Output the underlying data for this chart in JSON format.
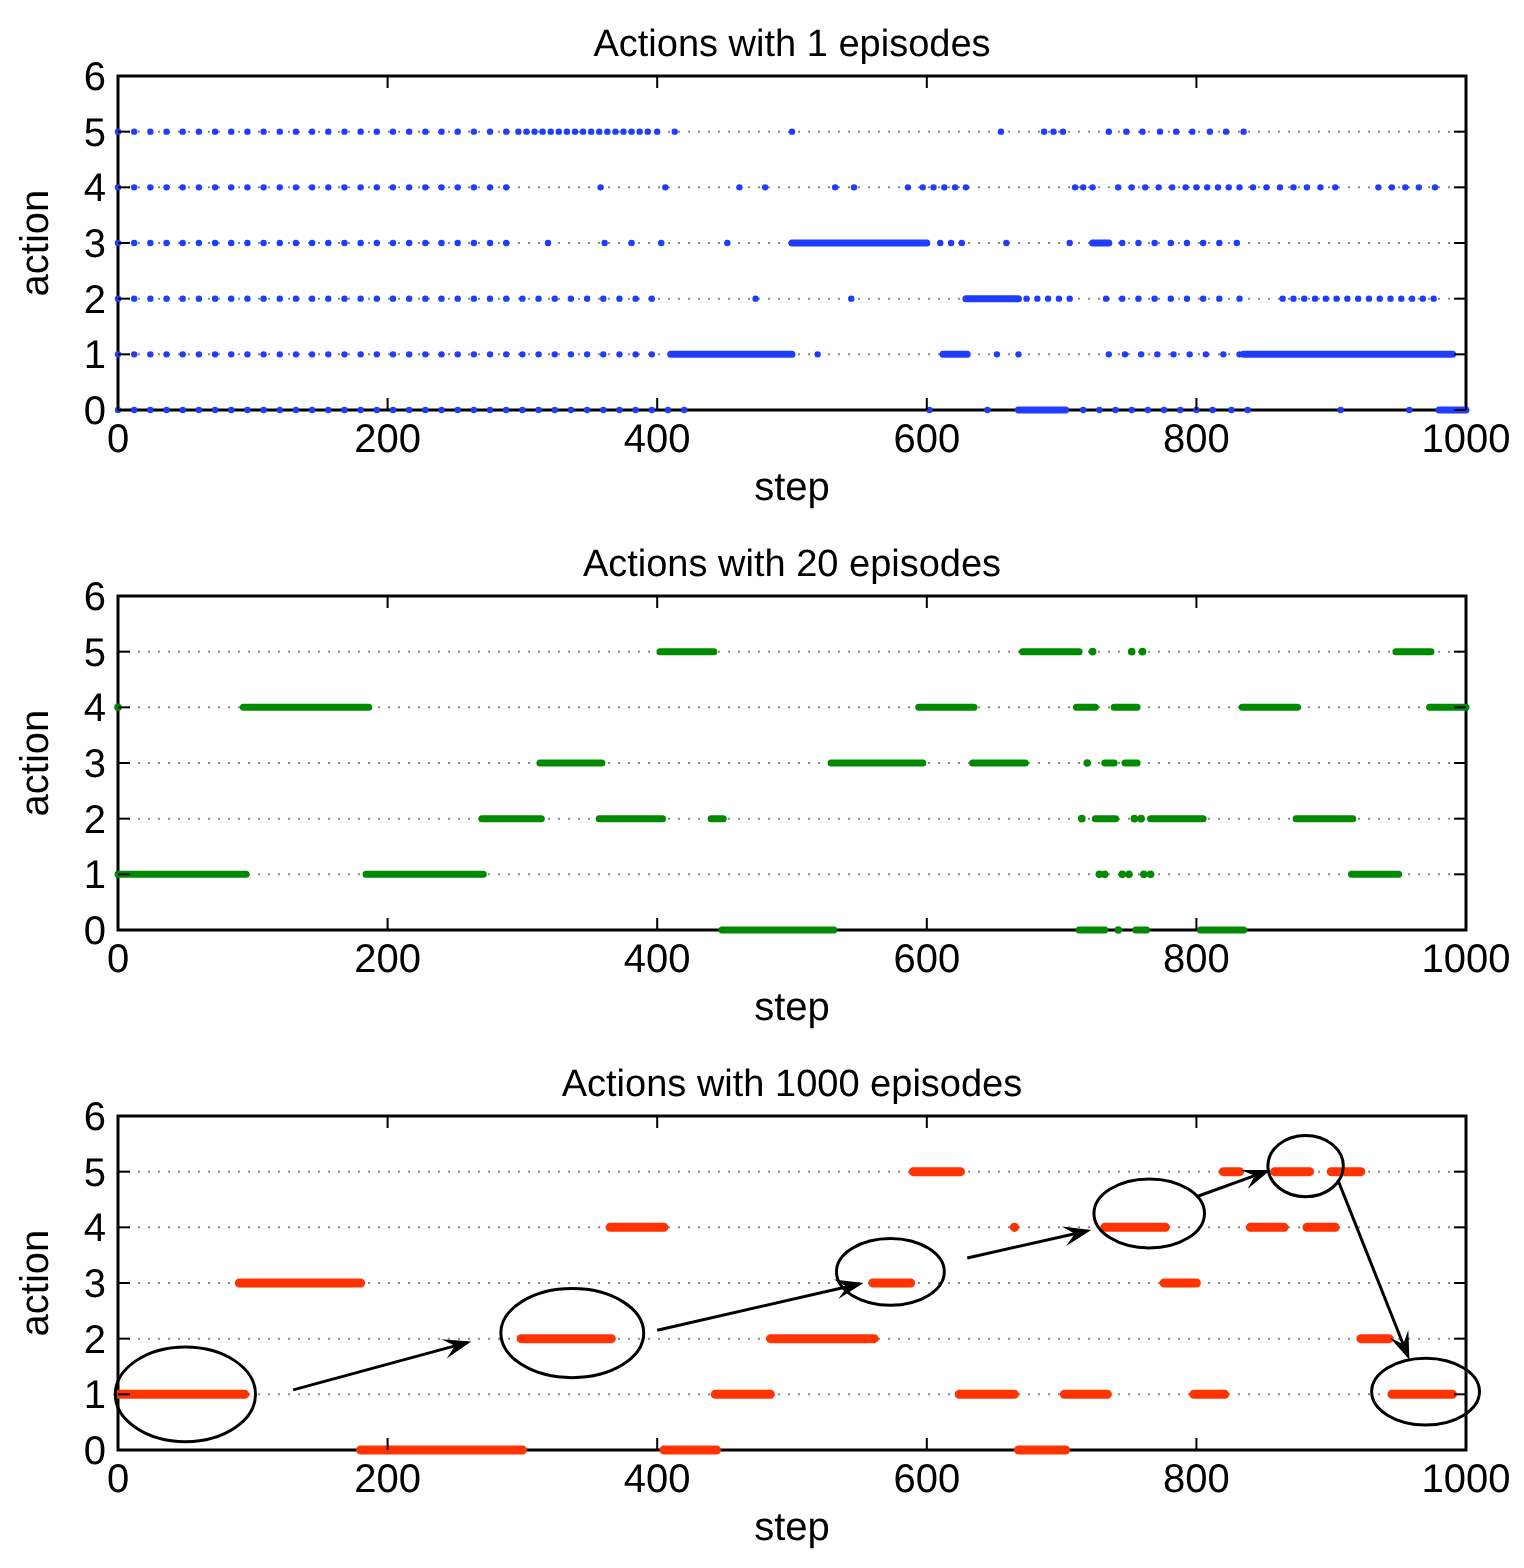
{
  "chart_data": [
    {
      "type": "scatter",
      "title": "Actions with 1 episodes",
      "xlabel": "step",
      "ylabel": "action",
      "xlim": [
        0,
        1000
      ],
      "ylim": [
        0,
        6
      ],
      "xticks": [
        0,
        200,
        400,
        600,
        800,
        1000
      ],
      "yticks": [
        0,
        1,
        2,
        3,
        4,
        5,
        6
      ],
      "grid": "y",
      "series": [
        {
          "color": "#1f3dff",
          "marker": "circle",
          "x": [
            0,
            12,
            24,
            36,
            48,
            60,
            72,
            84,
            96,
            108,
            120,
            132,
            144,
            156,
            168,
            180,
            192,
            204,
            216,
            228,
            240,
            252,
            264,
            276,
            288,
            297,
            303,
            309,
            315,
            321,
            327,
            333,
            339,
            345,
            351,
            357,
            363,
            369,
            375,
            381,
            387,
            393,
            400,
            413,
            500,
            655,
            687,
            694,
            701,
            735,
            748,
            760,
            773,
            785,
            797,
            810,
            822,
            835
          ],
          "values": [
            5,
            5,
            5,
            5,
            5,
            5,
            5,
            5,
            5,
            5,
            5,
            5,
            5,
            5,
            5,
            5,
            5,
            5,
            5,
            5,
            5,
            5,
            5,
            5,
            5,
            5,
            5,
            5,
            5,
            5,
            5,
            5,
            5,
            5,
            5,
            5,
            5,
            5,
            5,
            5,
            5,
            5,
            5,
            5,
            5,
            5,
            5,
            5,
            5,
            5,
            5,
            5,
            5,
            5,
            5,
            5,
            5,
            5
          ]
        },
        {
          "color": "#1f3dff",
          "marker": "circle",
          "x": [
            0,
            12,
            24,
            36,
            48,
            60,
            72,
            84,
            96,
            108,
            120,
            132,
            144,
            156,
            168,
            180,
            192,
            204,
            216,
            228,
            240,
            252,
            264,
            276,
            288,
            358,
            406,
            461,
            480,
            532,
            546,
            586,
            597,
            605,
            613,
            621,
            629,
            710,
            716,
            723,
            742,
            752,
            762,
            772,
            782,
            792,
            800,
            808,
            816,
            824,
            832,
            842,
            852,
            862,
            872,
            882,
            892,
            903,
            935,
            945,
            955,
            965,
            977
          ],
          "values": [
            4,
            4,
            4,
            4,
            4,
            4,
            4,
            4,
            4,
            4,
            4,
            4,
            4,
            4,
            4,
            4,
            4,
            4,
            4,
            4,
            4,
            4,
            4,
            4,
            4,
            4,
            4,
            4,
            4,
            4,
            4,
            4,
            4,
            4,
            4,
            4,
            4,
            4,
            4,
            4,
            4,
            4,
            4,
            4,
            4,
            4,
            4,
            4,
            4,
            4,
            4,
            4,
            4,
            4,
            4,
            4,
            4,
            4,
            4,
            4,
            4,
            4,
            4
          ]
        },
        {
          "color": "#1f3dff",
          "marker": "circle",
          "x": [
            0,
            12,
            24,
            36,
            48,
            60,
            72,
            84,
            96,
            108,
            120,
            132,
            144,
            156,
            168,
            180,
            192,
            204,
            216,
            228,
            240,
            252,
            264,
            276,
            288,
            319,
            361,
            381,
            403,
            452,
            610,
            618,
            626,
            659,
            706,
            745,
            757,
            769,
            781,
            793,
            805,
            817,
            830
          ],
          "values": [
            3,
            3,
            3,
            3,
            3,
            3,
            3,
            3,
            3,
            3,
            3,
            3,
            3,
            3,
            3,
            3,
            3,
            3,
            3,
            3,
            3,
            3,
            3,
            3,
            3,
            3,
            3,
            3,
            3,
            3,
            3,
            3,
            3,
            3,
            3,
            3,
            3,
            3,
            3,
            3,
            3,
            3,
            3
          ]
        },
        {
          "color": "#1f3dff",
          "marker": "circle",
          "x": [
            0,
            12,
            24,
            36,
            48,
            60,
            72,
            84,
            96,
            108,
            120,
            132,
            144,
            156,
            168,
            180,
            192,
            204,
            216,
            228,
            240,
            252,
            264,
            276,
            288,
            300,
            312,
            324,
            336,
            348,
            360,
            372,
            384,
            396,
            473,
            544,
            674,
            682,
            690,
            698,
            706,
            733,
            745,
            757,
            769,
            781,
            793,
            805,
            817,
            832,
            864,
            872,
            880,
            888,
            896,
            904,
            912,
            920,
            928,
            936,
            944,
            952,
            960,
            968,
            976
          ],
          "values": [
            2,
            2,
            2,
            2,
            2,
            2,
            2,
            2,
            2,
            2,
            2,
            2,
            2,
            2,
            2,
            2,
            2,
            2,
            2,
            2,
            2,
            2,
            2,
            2,
            2,
            2,
            2,
            2,
            2,
            2,
            2,
            2,
            2,
            2,
            2,
            2,
            2,
            2,
            2,
            2,
            2,
            2,
            2,
            2,
            2,
            2,
            2,
            2,
            2,
            2,
            2,
            2,
            2,
            2,
            2,
            2,
            2,
            2,
            2,
            2,
            2,
            2,
            2,
            2,
            2
          ]
        },
        {
          "color": "#1f3dff",
          "marker": "circle",
          "x": [
            0,
            12,
            24,
            36,
            48,
            60,
            72,
            84,
            96,
            108,
            120,
            132,
            144,
            156,
            168,
            180,
            192,
            204,
            216,
            228,
            240,
            252,
            264,
            276,
            288,
            300,
            312,
            324,
            336,
            348,
            360,
            372,
            384,
            396,
            519,
            652,
            668,
            735,
            747,
            759,
            771,
            783,
            795,
            807,
            820,
            832
          ],
          "values": [
            1,
            1,
            1,
            1,
            1,
            1,
            1,
            1,
            1,
            1,
            1,
            1,
            1,
            1,
            1,
            1,
            1,
            1,
            1,
            1,
            1,
            1,
            1,
            1,
            1,
            1,
            1,
            1,
            1,
            1,
            1,
            1,
            1,
            1,
            1,
            1,
            1,
            1,
            1,
            1,
            1,
            1,
            1,
            1,
            1,
            1
          ]
        },
        {
          "color": "#1f3dff",
          "marker": "circle",
          "x": [
            0,
            12,
            24,
            36,
            48,
            60,
            72,
            84,
            96,
            108,
            120,
            132,
            144,
            156,
            168,
            180,
            192,
            204,
            216,
            228,
            240,
            252,
            264,
            276,
            288,
            300,
            312,
            324,
            336,
            348,
            360,
            372,
            384,
            396,
            408,
            420,
            602,
            645,
            716,
            728,
            740,
            752,
            764,
            776,
            788,
            800,
            812,
            826,
            838,
            907,
            958
          ],
          "values": [
            0,
            0,
            0,
            0,
            0,
            0,
            0,
            0,
            0,
            0,
            0,
            0,
            0,
            0,
            0,
            0,
            0,
            0,
            0,
            0,
            0,
            0,
            0,
            0,
            0,
            0,
            0,
            0,
            0,
            0,
            0,
            0,
            0,
            0,
            0,
            0,
            0,
            0,
            0,
            0,
            0,
            0,
            0,
            0,
            0,
            0,
            0,
            0,
            0,
            0,
            0
          ]
        },
        {
          "type": "line",
          "color": "#1f3dff",
          "x": [
            500,
            600,
            605,
            629,
            668,
            670,
            723,
            735
          ],
          "values": [
            3,
            3,
            null,
            2,
            2,
            null,
            3,
            3
          ]
        },
        {
          "type": "line",
          "color": "#1f3dff",
          "x": [
            410,
            500,
            505,
            612,
            630,
            700,
            835,
            990
          ],
          "values": [
            1,
            1,
            null,
            1,
            1,
            null,
            1,
            1
          ]
        },
        {
          "type": "line",
          "color": "#1f3dff",
          "x": [
            668,
            703,
            750,
            980,
            1000
          ],
          "values": [
            0,
            0,
            null,
            0,
            0
          ]
        }
      ]
    },
    {
      "type": "scatter",
      "title": "Actions with 20 episodes",
      "xlabel": "step",
      "ylabel": "action",
      "xlim": [
        0,
        1000
      ],
      "ylim": [
        0,
        6
      ],
      "xticks": [
        0,
        200,
        400,
        600,
        800,
        1000
      ],
      "yticks": [
        0,
        1,
        2,
        3,
        4,
        5,
        6
      ],
      "grid": "y",
      "series": [
        {
          "type": "line",
          "color": "#008a00",
          "x": [
            402,
            442,
            500,
            671,
            713,
            800,
            948,
            974
          ],
          "values": [
            5,
            5,
            null,
            5,
            5,
            null,
            5,
            5
          ]
        },
        {
          "type": "line",
          "color": "#008a00",
          "x": [
            93,
            186,
            300,
            594,
            635,
            700,
            711,
            725,
            730,
            739,
            756,
            800,
            834,
            875,
            900,
            973,
            1000
          ],
          "values": [
            4,
            4,
            null,
            4,
            4,
            null,
            4,
            4,
            null,
            4,
            4,
            null,
            4,
            4,
            null,
            4,
            4
          ]
        },
        {
          "type": "line",
          "color": "#008a00",
          "x": [
            313,
            359,
            400,
            529,
            597,
            600,
            634,
            673,
            700,
            732,
            739,
            743,
            747,
            756
          ],
          "values": [
            3,
            3,
            null,
            3,
            3,
            null,
            3,
            3,
            null,
            3,
            3,
            null,
            3,
            3
          ]
        },
        {
          "type": "line",
          "color": "#008a00",
          "x": [
            270,
            314,
            320,
            357,
            404,
            420,
            440,
            449,
            500,
            725,
            740,
            750,
            766,
            805,
            850,
            874,
            916
          ],
          "values": [
            2,
            2,
            null,
            2,
            2,
            null,
            2,
            2,
            null,
            2,
            2,
            null,
            2,
            2,
            null,
            2,
            2
          ]
        },
        {
          "type": "line",
          "color": "#008a00",
          "x": [
            0,
            95,
            100,
            184,
            271,
            500,
            915,
            950
          ],
          "values": [
            1,
            1,
            null,
            1,
            1,
            null,
            1,
            1
          ]
        },
        {
          "type": "line",
          "color": "#008a00",
          "x": [
            448,
            531,
            600,
            713,
            732,
            740,
            755,
            763,
            780,
            803,
            835
          ],
          "values": [
            0,
            0,
            null,
            0,
            0,
            null,
            0,
            0,
            null,
            0,
            0
          ]
        },
        {
          "color": "#008a00",
          "marker": "circle",
          "x": [
            0,
            723,
            752,
            760,
            719,
            715,
            754,
            759,
            728,
            732,
            745,
            750,
            761,
            766,
            742
          ],
          "values": [
            4,
            5,
            5,
            5,
            3,
            2,
            2,
            2,
            1,
            1,
            1,
            1,
            1,
            1,
            0
          ]
        }
      ]
    },
    {
      "type": "scatter",
      "title": "Actions with 1000 episodes",
      "xlabel": "step",
      "ylabel": "action",
      "xlim": [
        0,
        1000
      ],
      "ylim": [
        0,
        6
      ],
      "xticks": [
        0,
        200,
        400,
        600,
        800,
        1000
      ],
      "yticks": [
        0,
        1,
        2,
        3,
        4,
        5,
        6
      ],
      "grid": "y",
      "series": [
        {
          "type": "line",
          "color": "#ff3300",
          "x": [
            590,
            625,
            700,
            820,
            832,
            840,
            858,
            884,
            890,
            900,
            922
          ],
          "values": [
            5,
            5,
            null,
            5,
            5,
            null,
            5,
            5,
            null,
            5,
            5
          ]
        },
        {
          "type": "line",
          "color": "#ff3300",
          "x": [
            365,
            405,
            600,
            732,
            777,
            800,
            840,
            865,
            870,
            882,
            903
          ],
          "values": [
            4,
            4,
            null,
            4,
            4,
            null,
            4,
            4,
            null,
            4,
            4
          ]
        },
        {
          "type": "line",
          "color": "#ff3300",
          "x": [
            90,
            180,
            300,
            560,
            588,
            700,
            776,
            800
          ],
          "values": [
            3,
            3,
            null,
            3,
            3,
            null,
            3,
            3
          ]
        },
        {
          "type": "line",
          "color": "#ff3300",
          "x": [
            299,
            366,
            400,
            484,
            561,
            700,
            922,
            943
          ],
          "values": [
            2,
            2,
            null,
            2,
            2,
            null,
            2,
            2
          ]
        },
        {
          "type": "line",
          "color": "#ff3300",
          "x": [
            0,
            94,
            300,
            443,
            484,
            500,
            624,
            665,
            680,
            702,
            734,
            760,
            798,
            821,
            900,
            945,
            990
          ],
          "values": [
            1,
            1,
            null,
            1,
            1,
            null,
            1,
            1,
            null,
            1,
            1,
            null,
            1,
            1,
            null,
            1,
            1
          ]
        },
        {
          "type": "line",
          "color": "#ff3300",
          "x": [
            180,
            300,
            350,
            405,
            444,
            500,
            668,
            703
          ],
          "values": [
            0,
            0,
            null,
            0,
            0,
            null,
            0,
            0
          ]
        },
        {
          "color": "#ff3300",
          "marker": "circle",
          "x": [
            665
          ],
          "values": [
            4
          ]
        }
      ]
    }
  ]
}
